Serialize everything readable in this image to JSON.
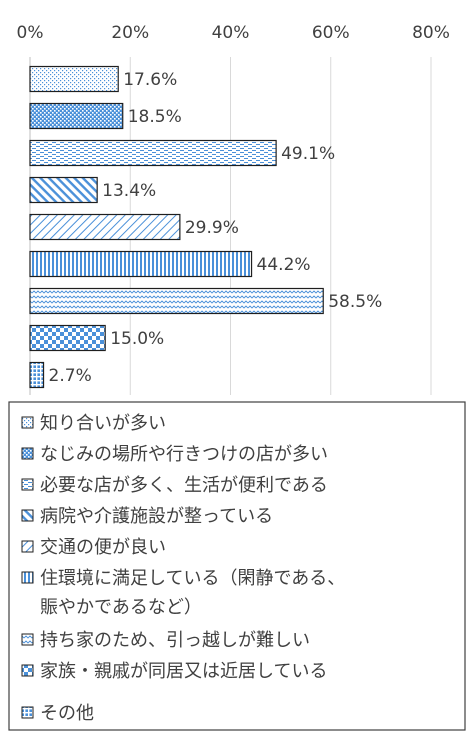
{
  "chart_data": {
    "type": "bar",
    "orientation": "horizontal",
    "x_ticks": [
      "0%",
      "20%",
      "40%",
      "60%",
      "80%"
    ],
    "xlim": [
      0,
      80
    ],
    "grid": true,
    "legend_placement": "bottom",
    "categories": [
      "知り合いが多い",
      "なじみの場所や行きつけの店が多い",
      "必要な店が多く、生活が便利である",
      "病院や介護施設が整っている",
      "交通の便が良い",
      "住環境に満足している（閑静である、賑やかであるなど）",
      "持ち家のため、引っ越しが難しい",
      "家族・親戚が同居又は近居している",
      "その他"
    ],
    "legend_lines": [
      [
        "知り合いが多い"
      ],
      [
        "なじみの場所や行きつけの店が多い"
      ],
      [
        "必要な店が多く、生活が便利である"
      ],
      [
        "病院や介護施設が整っている"
      ],
      [
        "交通の便が良い"
      ],
      [
        "住環境に満足している（閑静である、",
        "賑やかであるなど）"
      ],
      [
        "持ち家のため、引っ越しが難しい"
      ],
      [
        "家族・親戚が同居又は近居している"
      ],
      [
        "その他"
      ]
    ],
    "values": [
      17.6,
      18.5,
      49.1,
      13.4,
      29.9,
      44.2,
      58.5,
      15.0,
      2.7
    ],
    "value_labels": [
      "17.6%",
      "18.5%",
      "49.1%",
      "13.4%",
      "29.9%",
      "44.2%",
      "58.5%",
      "15.0%",
      "2.7%"
    ],
    "colors": {
      "bar_border": "#1f1f1f",
      "pattern": "#4a90d9",
      "text": "#404040",
      "grid": "#d9d9d9"
    }
  }
}
